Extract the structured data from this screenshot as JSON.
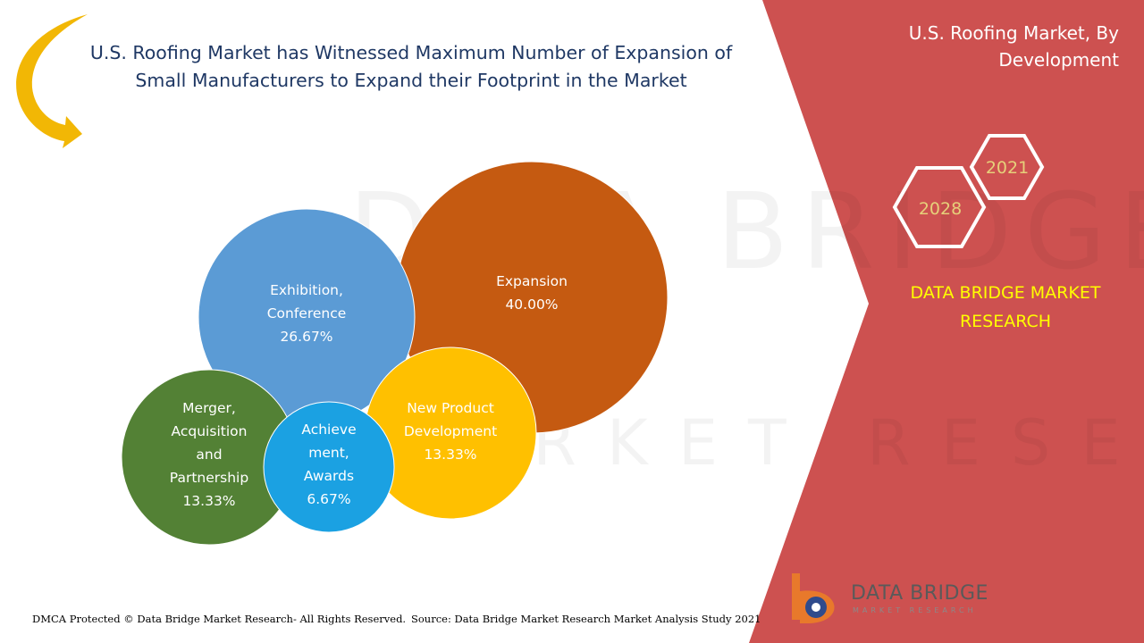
{
  "header": {
    "title_lines": [
      "U.S. Roofing Market has Witnessed Maximum Number of Expansion of",
      "Small Manufacturers to Expand their Footprint in the Market"
    ],
    "side_title_lines": [
      "U.S. Roofing Market, By",
      "Development"
    ]
  },
  "years": {
    "base": "2021",
    "forecast": "2028"
  },
  "brand": {
    "name_lines": [
      "DATA BRIDGE MARKET",
      "RESEARCH"
    ],
    "logo_name": "DATA BRIDGE",
    "logo_sub": "MARKET RESEARCH",
    "watermark_line1": "DATA BRIDGE",
    "watermark_line2": "MARKET RESEARCH"
  },
  "footer": {
    "copyright": "DMCA Protected © Data Bridge Market Research- All Rights Reserved.",
    "source": "Source: Data Bridge Market Research Market Analysis Study 2021"
  },
  "colors": {
    "panel_red": "#cd5150",
    "expansion": "#c55a11",
    "exhibition": "#5b9bd5",
    "merger": "#538135",
    "achievement": "#1ba1e2",
    "new_product": "#ffc000",
    "brand_yellow": "#ffff00",
    "hex_text": "#e6d07a",
    "arrow": "#f2b705"
  },
  "icons": [
    "curved-arrow-icon",
    "hexagon-icon",
    "data-bridge-logo-icon"
  ],
  "chart_data": {
    "type": "bubble",
    "title": "U.S. Roofing Market, By Development",
    "unit": "%",
    "segments": [
      {
        "key": "expansion",
        "label_lines": [
          "Expansion"
        ],
        "value": 40.0,
        "value_label": "40.00%"
      },
      {
        "key": "exhibition",
        "label_lines": [
          "Exhibition,",
          "Conference"
        ],
        "value": 26.67,
        "value_label": "26.67%"
      },
      {
        "key": "merger",
        "label_lines": [
          "Merger,",
          "Acquisition",
          "and",
          "Partnership"
        ],
        "value": 13.33,
        "value_label": "13.33%"
      },
      {
        "key": "new_product",
        "label_lines": [
          "New Product",
          "Development"
        ],
        "value": 13.33,
        "value_label": "13.33%"
      },
      {
        "key": "achievement",
        "label_lines": [
          "Achieve",
          "ment,",
          "Awards"
        ],
        "value": 6.67,
        "value_label": "6.67%"
      }
    ]
  }
}
